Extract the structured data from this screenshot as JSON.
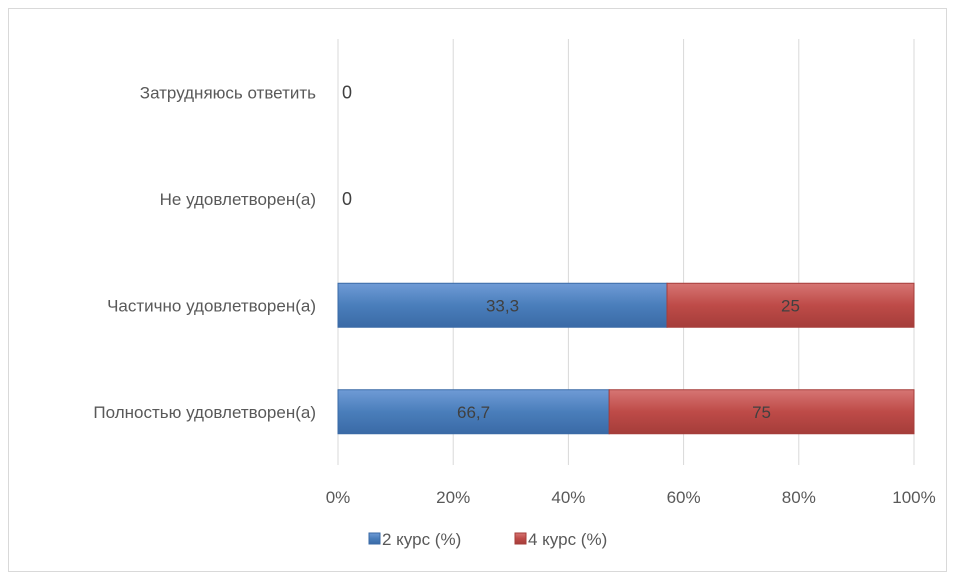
{
  "chart_data": {
    "type": "bar",
    "orientation": "horizontal",
    "stacking": "percent",
    "categories": [
      "Затрудняюсь ответить",
      "Не удовлетворен(а)",
      "Частично удовлетворен(а)",
      "Полностью удовлетворен(а)"
    ],
    "series": [
      {
        "name": "2 курс (%)",
        "values": [
          0,
          0,
          33.3,
          66.7
        ],
        "color": "#4a7ebb"
      },
      {
        "name": "4 курс (%)",
        "values": [
          0,
          0,
          25,
          75
        ],
        "color": "#be4b48"
      }
    ],
    "data_labels": [
      [
        "0",
        "0",
        "33,3",
        "66,7"
      ],
      [
        "",
        "",
        "25",
        "75"
      ]
    ],
    "xticks": [
      "0%",
      "20%",
      "40%",
      "60%",
      "80%",
      "100%"
    ],
    "xlim": [
      0,
      100
    ],
    "title": "",
    "xlabel": "",
    "ylabel": "",
    "grid": "vertical",
    "legend": {
      "position": "bottom"
    }
  }
}
